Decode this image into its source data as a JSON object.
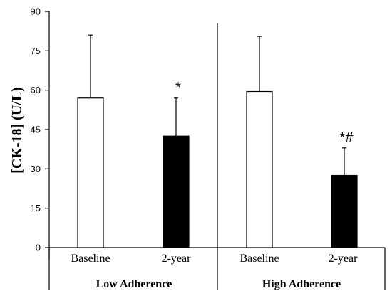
{
  "chart_data": {
    "type": "bar",
    "ylabel": "[CK-18] (U/L)",
    "ylim": [
      0,
      90
    ],
    "yticks": [
      0,
      15,
      30,
      45,
      60,
      75,
      90
    ],
    "grid": false,
    "groups": [
      {
        "label": "Low Adherence",
        "bars": [
          {
            "category": "Baseline",
            "value": 57,
            "error": 24,
            "fill": "#ffffff",
            "annotation": ""
          },
          {
            "category": "2-year",
            "value": 42.5,
            "error": 14.5,
            "fill": "#000000",
            "annotation": "*"
          }
        ]
      },
      {
        "label": "High Adherence",
        "bars": [
          {
            "category": "Baseline",
            "value": 59.5,
            "error": 21,
            "fill": "#ffffff",
            "annotation": ""
          },
          {
            "category": "2-year",
            "value": 27.5,
            "error": 10.5,
            "fill": "#000000",
            "annotation": "*#"
          }
        ]
      }
    ]
  }
}
